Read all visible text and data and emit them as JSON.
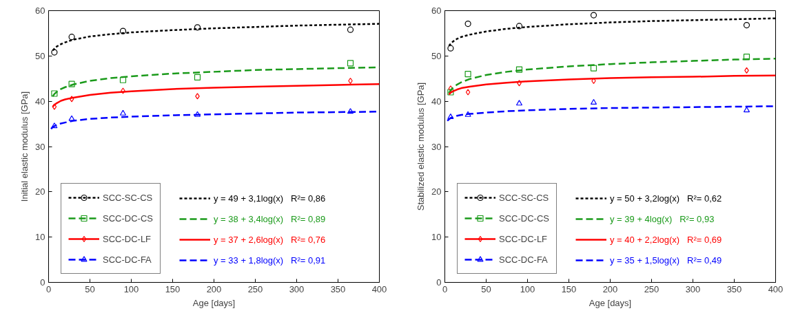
{
  "chart_data": [
    {
      "type": "scatter",
      "xlabel": "Age [days]",
      "ylabel": "Initial elastic modulus [GPa]",
      "xlim": [
        0,
        400
      ],
      "ylim": [
        0,
        60
      ],
      "xticks": [
        0,
        50,
        100,
        150,
        200,
        250,
        300,
        350,
        400
      ],
      "yticks": [
        0,
        10,
        20,
        30,
        40,
        50,
        60
      ],
      "legend": "bottom",
      "series": [
        {
          "name": "SCC-SC-CS",
          "color": "#000000",
          "marker": "circle",
          "x": [
            7,
            28,
            90,
            180,
            365
          ],
          "values": [
            50.8,
            54.2,
            55.5,
            56.3,
            55.8
          ]
        },
        {
          "name": "SCC-DC-CS",
          "color": "#1a9a1a",
          "marker": "square",
          "x": [
            7,
            28,
            90,
            180,
            365
          ],
          "values": [
            41.7,
            43.8,
            44.7,
            45.3,
            48.4
          ]
        },
        {
          "name": "SCC-DC-LF",
          "color": "#ff0000",
          "marker": "diamond",
          "x": [
            7,
            28,
            90,
            180,
            365
          ],
          "values": [
            38.8,
            40.5,
            42.3,
            41.1,
            44.5
          ]
        },
        {
          "name": "SCC-DC-FA",
          "color": "#0000ff",
          "marker": "triangle",
          "x": [
            7,
            28,
            90,
            180,
            365
          ],
          "values": [
            34.5,
            36.1,
            37.3,
            37.0,
            37.7
          ]
        },
        {
          "type": "line",
          "name": "y = 49 + 3,1log(x)   R²= 0,86",
          "color": "#000000",
          "line_style": "dotted",
          "x": [
            5,
            7,
            10,
            15,
            20,
            30,
            50,
            75,
            100,
            150,
            200,
            250,
            300,
            350,
            400
          ],
          "values": [
            51.2,
            51.6,
            52.1,
            52.6,
            53.0,
            53.6,
            54.3,
            54.8,
            55.2,
            55.7,
            56.1,
            56.4,
            56.7,
            56.9,
            57.1
          ]
        },
        {
          "type": "line",
          "name": "y = 38 + 3,4log(x)   R²= 0,89",
          "color": "#1a9a1a",
          "line_style": "dashed",
          "x": [
            5,
            7,
            10,
            15,
            20,
            30,
            50,
            75,
            100,
            150,
            200,
            250,
            300,
            350,
            400
          ],
          "values": [
            41.1,
            41.6,
            42.1,
            42.7,
            43.1,
            43.7,
            44.5,
            45.1,
            45.5,
            46.1,
            46.5,
            46.9,
            47.1,
            47.3,
            47.5
          ]
        },
        {
          "type": "line",
          "name": "y = 37 + 2,6log(x)   R²= 0,76",
          "color": "#ff0000",
          "line_style": "solid",
          "x": [
            5,
            7,
            10,
            15,
            20,
            30,
            50,
            75,
            100,
            150,
            200,
            250,
            300,
            350,
            400
          ],
          "values": [
            38.8,
            39.2,
            39.6,
            40.1,
            40.4,
            40.8,
            41.4,
            41.9,
            42.2,
            42.7,
            43.0,
            43.2,
            43.4,
            43.6,
            43.8
          ]
        },
        {
          "type": "line",
          "name": "y = 33 + 1,8log(x)   R²= 0,91",
          "color": "#0000ff",
          "line_style": "dashed",
          "x": [
            3,
            5,
            7,
            10,
            15,
            20,
            30,
            50,
            75,
            100,
            150,
            200,
            250,
            300,
            350,
            400
          ],
          "values": [
            33.9,
            34.3,
            34.5,
            34.8,
            35.1,
            35.3,
            35.7,
            36.1,
            36.4,
            36.6,
            36.9,
            37.1,
            37.3,
            37.5,
            37.6,
            37.7
          ]
        }
      ]
    },
    {
      "type": "scatter",
      "xlabel": "Age [days]",
      "ylabel": "Stabilized elastic modulus [GPa]",
      "xlim": [
        0,
        400
      ],
      "ylim": [
        0,
        60
      ],
      "xticks": [
        0,
        50,
        100,
        150,
        200,
        250,
        300,
        350,
        400
      ],
      "yticks": [
        0,
        10,
        20,
        30,
        40,
        50,
        60
      ],
      "legend": "bottom",
      "series": [
        {
          "name": "SCC-SC-CS",
          "color": "#000000",
          "marker": "circle",
          "x": [
            7,
            28,
            90,
            180,
            365
          ],
          "values": [
            51.7,
            57.1,
            56.6,
            59.0,
            56.8
          ]
        },
        {
          "name": "SCC-DC-CS",
          "color": "#1a9a1a",
          "marker": "square",
          "x": [
            7,
            28,
            90,
            180,
            365
          ],
          "values": [
            42.0,
            46.0,
            47.0,
            47.3,
            49.8
          ]
        },
        {
          "name": "SCC-DC-LF",
          "color": "#ff0000",
          "marker": "diamond",
          "x": [
            7,
            28,
            90,
            180,
            365
          ],
          "values": [
            42.8,
            42.0,
            44.0,
            44.5,
            46.8
          ]
        },
        {
          "name": "SCC-DC-FA",
          "color": "#0000ff",
          "marker": "triangle",
          "x": [
            7,
            28,
            90,
            180,
            365
          ],
          "values": [
            36.5,
            37.0,
            39.5,
            39.7,
            38.0
          ]
        },
        {
          "type": "line",
          "name": "y = 50 + 3,2log(x)   R²= 0,62",
          "color": "#000000",
          "line_style": "dotted",
          "x": [
            5,
            7,
            10,
            15,
            20,
            30,
            50,
            75,
            100,
            150,
            200,
            250,
            300,
            350,
            400
          ],
          "values": [
            52.2,
            52.7,
            53.2,
            53.8,
            54.2,
            54.7,
            55.4,
            56.0,
            56.4,
            57.0,
            57.4,
            57.7,
            57.9,
            58.1,
            58.3
          ]
        },
        {
          "type": "line",
          "name": "y = 39 + 4log(x)   R²= 0,93",
          "color": "#1a9a1a",
          "line_style": "dashed",
          "x": [
            5,
            7,
            10,
            15,
            20,
            30,
            50,
            75,
            100,
            150,
            200,
            250,
            300,
            350,
            400
          ],
          "values": [
            41.8,
            42.4,
            43.0,
            43.7,
            44.2,
            44.9,
            45.8,
            46.5,
            47.0,
            47.7,
            48.2,
            48.6,
            48.9,
            49.2,
            49.4
          ]
        },
        {
          "type": "line",
          "name": "y = 40 + 2,2log(x)   R²= 0,69",
          "color": "#ff0000",
          "line_style": "solid",
          "x": [
            5,
            7,
            10,
            15,
            20,
            30,
            50,
            75,
            100,
            150,
            200,
            250,
            300,
            350,
            400
          ],
          "values": [
            41.5,
            41.9,
            42.2,
            42.6,
            42.9,
            43.2,
            43.7,
            44.1,
            44.4,
            44.8,
            45.1,
            45.3,
            45.4,
            45.6,
            45.7
          ]
        },
        {
          "type": "line",
          "name": "y = 35 + 1,5log(x)   R²= 0,49",
          "color": "#0000ff",
          "line_style": "dashed",
          "x": [
            3,
            5,
            7,
            10,
            15,
            20,
            30,
            50,
            75,
            100,
            150,
            200,
            250,
            300,
            350,
            400
          ],
          "values": [
            35.7,
            36.0,
            36.3,
            36.5,
            36.8,
            37.0,
            37.2,
            37.5,
            37.8,
            38.0,
            38.3,
            38.5,
            38.6,
            38.7,
            38.8,
            38.9
          ]
        }
      ]
    }
  ]
}
